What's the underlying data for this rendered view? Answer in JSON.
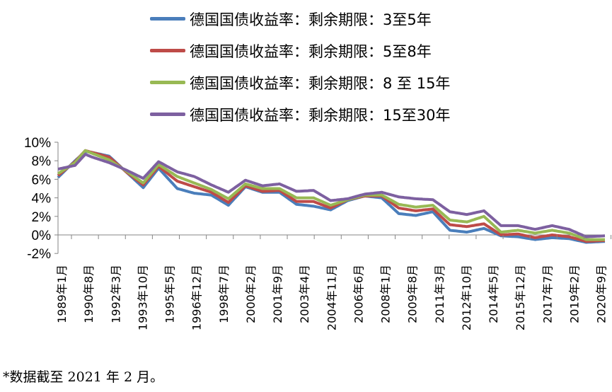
{
  "chart_data": {
    "type": "line",
    "title": "",
    "xlabel": "",
    "ylabel": "",
    "ylim": [
      -2,
      10
    ],
    "y_ticks": [
      "10%",
      "8%",
      "6%",
      "4%",
      "2%",
      "0%",
      "-2%"
    ],
    "y_tick_values": [
      10,
      8,
      6,
      4,
      2,
      0,
      -2
    ],
    "x_range": [
      1989.0,
      2021.1
    ],
    "x_tick_labels": [
      "1989年1月",
      "1990年8月",
      "1992年3月",
      "1993年10月",
      "1995年5月",
      "1996年12月",
      "1998年7月",
      "2000年2月",
      "2001年9月",
      "2003年4月",
      "2004年11月",
      "2006年6月",
      "2008年1月",
      "2009年8月",
      "2011年3月",
      "2012年10月",
      "2014年5月",
      "2015年12月",
      "2017年7月",
      "2019年2月",
      "2020年9月"
    ],
    "legend_placement": "top",
    "x": [
      1989.0,
      1990.0,
      1990.6,
      1991.0,
      1992.0,
      1993.0,
      1994.0,
      1994.9,
      1996.0,
      1997.0,
      1998.0,
      1999.0,
      2000.0,
      2001.0,
      2002.0,
      2003.0,
      2004.0,
      2005.0,
      2006.0,
      2007.0,
      2008.0,
      2009.0,
      2010.0,
      2011.0,
      2012.0,
      2013.0,
      2014.0,
      2015.0,
      2016.0,
      2017.0,
      2018.0,
      2019.0,
      2020.0,
      2021.1
    ],
    "series": [
      {
        "name": "德国国债收益率：剩余期限：3至5年",
        "color": "#4a7ebb",
        "values": [
          6.2,
          8.0,
          9.0,
          8.9,
          8.5,
          6.8,
          5.1,
          7.2,
          5.0,
          4.5,
          4.3,
          3.2,
          5.2,
          4.6,
          4.6,
          3.3,
          3.1,
          2.7,
          3.7,
          4.2,
          4.0,
          2.3,
          2.1,
          2.5,
          0.5,
          0.3,
          0.7,
          -0.1,
          -0.2,
          -0.5,
          -0.3,
          -0.4,
          -0.8,
          -0.7
        ]
      },
      {
        "name": "德国国债收益率：剩余期限：5至8年",
        "color": "#be4b48",
        "values": [
          6.4,
          7.9,
          9.1,
          8.9,
          8.4,
          6.8,
          5.4,
          7.4,
          5.8,
          5.2,
          4.6,
          3.5,
          5.3,
          4.7,
          4.8,
          3.6,
          3.6,
          2.9,
          3.8,
          4.2,
          4.2,
          2.9,
          2.6,
          2.8,
          1.1,
          0.9,
          1.2,
          0.0,
          0.1,
          -0.3,
          0.0,
          -0.2,
          -0.7,
          -0.6
        ]
      },
      {
        "name": "德国国债收益率：剩余期限：8 至 15年",
        "color": "#98b954",
        "values": [
          6.6,
          7.8,
          9.1,
          8.8,
          8.1,
          6.9,
          5.6,
          7.6,
          6.3,
          5.6,
          4.9,
          3.9,
          5.5,
          5.0,
          5.0,
          4.0,
          4.0,
          3.2,
          3.8,
          4.3,
          4.3,
          3.3,
          3.0,
          3.2,
          1.6,
          1.4,
          2.0,
          0.3,
          0.5,
          0.2,
          0.5,
          0.2,
          -0.5,
          -0.5
        ]
      },
      {
        "name": "德国国债收益率：剩余期限：15至30年",
        "color": "#7d60a0",
        "values": [
          7.1,
          7.5,
          8.7,
          8.4,
          7.8,
          7.0,
          6.1,
          7.9,
          6.8,
          6.3,
          5.4,
          4.6,
          5.9,
          5.3,
          5.5,
          4.7,
          4.8,
          3.7,
          3.9,
          4.4,
          4.6,
          4.1,
          3.9,
          3.8,
          2.5,
          2.2,
          2.6,
          1.0,
          1.0,
          0.6,
          1.0,
          0.6,
          -0.2,
          -0.1
        ]
      }
    ]
  },
  "footnote": "*数据截至 2021 年 2 月。"
}
